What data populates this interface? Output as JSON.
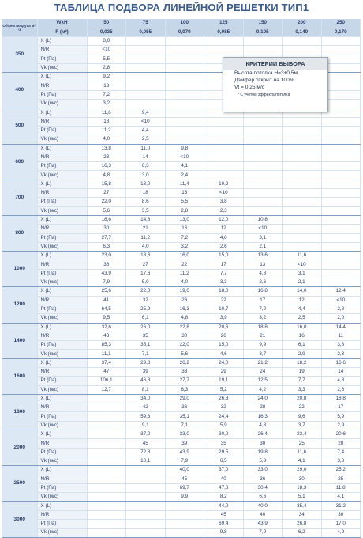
{
  "title": "ТАБЛИЦА ПОДБОРА ЛИНЕЙНОЙ РЕШЕТКИ ТИП1",
  "header": {
    "volume_label": "Объем воздуха м³/ч",
    "size_label": "WxH",
    "sizes": [
      50,
      75,
      100,
      125,
      150,
      200,
      250
    ],
    "area_label": "F (м²)",
    "areas": [
      "0,035",
      "0,055",
      "0,070",
      "0,085",
      "0,105",
      "0,140",
      "0,170"
    ]
  },
  "param_labels": [
    "X (L)",
    "N/R",
    "Pt (Па)",
    "Vk (м/с)"
  ],
  "groups": [
    {
      "volume": 350,
      "rows": [
        [
          "8,0",
          null,
          null,
          null,
          null,
          null,
          null
        ],
        [
          "<10",
          null,
          null,
          null,
          null,
          null,
          null
        ],
        [
          "5,5",
          null,
          null,
          null,
          null,
          null,
          null
        ],
        [
          "2,8",
          null,
          null,
          null,
          null,
          null,
          null
        ]
      ]
    },
    {
      "volume": 400,
      "rows": [
        [
          "9,2",
          null,
          null,
          null,
          null,
          null,
          null
        ],
        [
          "13",
          null,
          null,
          null,
          null,
          null,
          null
        ],
        [
          "7,2",
          null,
          null,
          null,
          null,
          null,
          null
        ],
        [
          "3,2",
          null,
          null,
          null,
          null,
          null,
          null
        ]
      ]
    },
    {
      "volume": 500,
      "rows": [
        [
          "11,6",
          "9,4",
          null,
          null,
          null,
          null,
          null
        ],
        [
          "18",
          "<10",
          null,
          null,
          null,
          null,
          null
        ],
        [
          "11,2",
          "4,4",
          null,
          null,
          null,
          null,
          null
        ],
        [
          "4,0",
          "2,5",
          null,
          null,
          null,
          null,
          null
        ]
      ]
    },
    {
      "volume": 600,
      "rows": [
        [
          "13,8",
          "11,0",
          "9,8",
          null,
          null,
          null,
          null
        ],
        [
          "23",
          "14",
          "<10",
          null,
          null,
          null,
          null
        ],
        [
          "16,3",
          "6,3",
          "4,1",
          null,
          null,
          null,
          null
        ],
        [
          "4,8",
          "3,0",
          "2,4",
          null,
          null,
          null,
          null
        ]
      ]
    },
    {
      "volume": 700,
      "rows": [
        [
          "15,8",
          "13,0",
          "11,4",
          "10,2",
          null,
          null,
          null
        ],
        [
          "27",
          "18",
          "13",
          "<10",
          null,
          null,
          null
        ],
        [
          "22,0",
          "8,6",
          "5,5",
          "3,8",
          null,
          null,
          null
        ],
        [
          "5,6",
          "3,5",
          "2,8",
          "2,3",
          null,
          null,
          null
        ]
      ]
    },
    {
      "volume": 800,
      "rows": [
        [
          "18,6",
          "14,8",
          "13,0",
          "12,0",
          "10,8",
          null,
          null
        ],
        [
          "30",
          "21",
          "16",
          "12",
          "<10",
          null,
          null
        ],
        [
          "27,7",
          "11,2",
          "7,2",
          "4,8",
          "3,1",
          null,
          null
        ],
        [
          "6,3",
          "4,0",
          "3,2",
          "2,6",
          "2,1",
          null,
          null
        ]
      ]
    },
    {
      "volume": 1000,
      "rows": [
        [
          "23,0",
          "18,6",
          "16,0",
          "15,0",
          "13,6",
          "11,6",
          null
        ],
        [
          "36",
          "27",
          "22",
          "17",
          "13",
          "<10",
          null
        ],
        [
          "43,9",
          "17,6",
          "11,2",
          "7,7",
          "4,8",
          "3,1",
          null
        ],
        [
          "7,9",
          "5,0",
          "4,0",
          "3,3",
          "2,6",
          "2,1",
          null
        ]
      ]
    },
    {
      "volume": 1200,
      "rows": [
        [
          "25,6",
          "22,0",
          "19,0",
          "18,0",
          "16,8",
          "14,0",
          "12,4"
        ],
        [
          "41",
          "32",
          "26",
          "22",
          "17",
          "12",
          "<10"
        ],
        [
          "64,5",
          "25,9",
          "16,3",
          "10,7",
          "7,2",
          "4,4",
          "2,8"
        ],
        [
          "9,5",
          "6,1",
          "4,8",
          "3,9",
          "3,2",
          "2,5",
          "2,0"
        ]
      ]
    },
    {
      "volume": 1400,
      "rows": [
        [
          "32,6",
          "26,0",
          "22,8",
          "20,6",
          "18,8",
          "16,0",
          "14,4"
        ],
        [
          "43",
          "35",
          "30",
          "26",
          "21",
          "16",
          "11"
        ],
        [
          "85,3",
          "35,1",
          "22,0",
          "15,0",
          "9,9",
          "6,1",
          "3,8"
        ],
        [
          "11,1",
          "7,1",
          "5,6",
          "4,6",
          "3,7",
          "2,9",
          "2,3"
        ]
      ]
    },
    {
      "volume": 1600,
      "rows": [
        [
          "37,4",
          "29,8",
          "26,2",
          "24,0",
          "21,2",
          "18,2",
          "16,6"
        ],
        [
          "47",
          "39",
          "33",
          "29",
          "24",
          "19",
          "14"
        ],
        [
          "106,1",
          "46,3",
          "27,7",
          "19,1",
          "12,5",
          "7,7",
          "4,8"
        ],
        [
          "12,7",
          "8,1",
          "6,3",
          "5,2",
          "4,2",
          "3,3",
          "2,6"
        ]
      ]
    },
    {
      "volume": 1800,
      "rows": [
        [
          null,
          "34,0",
          "29,0",
          "26,8",
          "24,0",
          "20,8",
          "18,8"
        ],
        [
          null,
          "42",
          "36",
          "32",
          "28",
          "22",
          "17"
        ],
        [
          null,
          "59,3",
          "35,1",
          "24,4",
          "16,3",
          "9,6",
          "5,9"
        ],
        [
          null,
          "9,1",
          "7,1",
          "5,9",
          "4,8",
          "3,7",
          "2,9"
        ]
      ]
    },
    {
      "volume": 2000,
      "rows": [
        [
          null,
          "37,0",
          "33,0",
          "30,0",
          "26,4",
          "23,4",
          "20,6"
        ],
        [
          null,
          "45",
          "39",
          "35",
          "30",
          "25",
          "20"
        ],
        [
          null,
          "72,3",
          "43,9",
          "29,5",
          "19,8",
          "11,6",
          "7,4"
        ],
        [
          null,
          "10,1",
          "7,9",
          "6,5",
          "5,3",
          "4,1",
          "3,3"
        ]
      ]
    },
    {
      "volume": 2500,
      "rows": [
        [
          null,
          null,
          "40,0",
          "37,0",
          "33,0",
          "29,0",
          "25,2"
        ],
        [
          null,
          null,
          "45",
          "40",
          "36",
          "30",
          "25"
        ],
        [
          null,
          null,
          "69,7",
          "47,8",
          "30,4",
          "18,3",
          "11,8"
        ],
        [
          null,
          null,
          "9,9",
          "8,2",
          "6,6",
          "5,1",
          "4,1"
        ]
      ]
    },
    {
      "volume": 3000,
      "rows": [
        [
          null,
          null,
          null,
          "44,0",
          "40,0",
          "35,4",
          "31,2"
        ],
        [
          null,
          null,
          null,
          "45",
          "40",
          "34",
          "30"
        ],
        [
          null,
          null,
          null,
          "69,4",
          "43,9",
          "26,8",
          "17,0"
        ],
        [
          null,
          null,
          null,
          "9,8",
          "7,9",
          "6,2",
          "4,9"
        ]
      ]
    }
  ],
  "criteria": {
    "title": "КРИТЕРИИ ВЫБОРА",
    "lines": [
      "Высота потолка H=3±0,5м",
      "Дэмфер открыт на 100%",
      "Vt = 0,25 м/с"
    ],
    "note": "* С учетом эффекта потолка"
  }
}
